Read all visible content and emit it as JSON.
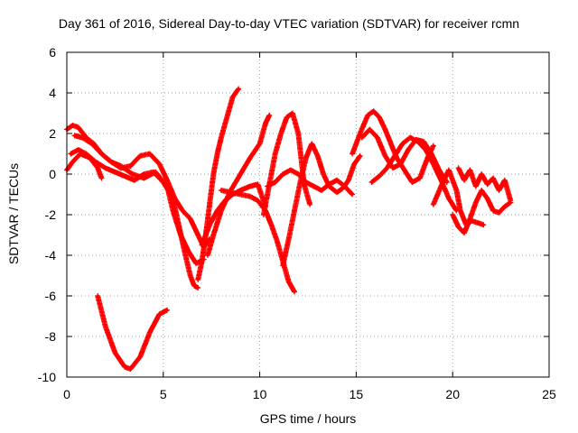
{
  "chart_data": {
    "type": "scatter",
    "title": "Day 361 of 2016, Sidereal Day-to-day VTEC variation (SDTVAR) for receiver rcmn",
    "xlabel": "GPS time / hours",
    "ylabel": "SDTVAR / TECUs",
    "xlim": [
      0,
      25
    ],
    "ylim": [
      -10,
      6
    ],
    "xticks": [
      0,
      5,
      10,
      15,
      20,
      25
    ],
    "yticks": [
      -10,
      -8,
      -6,
      -4,
      -2,
      0,
      2,
      4,
      6
    ],
    "xtick_labels": [
      "0",
      "5",
      "10",
      "15",
      "20",
      "25"
    ],
    "ytick_labels": [
      "-10",
      "-8",
      "-6",
      "-4",
      "-2",
      "0",
      "2",
      "4",
      "6"
    ],
    "grid": true,
    "marker": "+",
    "color": "#ff0000",
    "series": [
      {
        "name": "s1",
        "x": [
          0.0,
          0.3,
          0.7,
          1.2,
          1.6,
          1.8
        ],
        "y": [
          0.2,
          0.6,
          1.0,
          0.8,
          0.3,
          -0.2
        ]
      },
      {
        "name": "s2",
        "x": [
          1.6,
          2.0,
          2.5,
          3.0,
          3.3,
          3.8,
          4.3,
          4.8,
          5.2
        ],
        "y": [
          -6.0,
          -7.5,
          -8.8,
          -9.5,
          -9.6,
          -9.0,
          -7.8,
          -6.9,
          -6.7
        ]
      },
      {
        "name": "s3",
        "x": [
          0.0,
          0.3,
          0.6,
          1.0,
          1.4,
          1.8,
          2.3,
          2.8,
          3.3,
          3.8,
          4.3,
          4.8,
          5.2,
          5.6,
          6.0,
          6.4,
          6.8,
          7.1,
          7.4
        ],
        "y": [
          2.2,
          2.4,
          2.3,
          1.8,
          1.5,
          1.0,
          0.6,
          0.3,
          0.4,
          0.9,
          1.0,
          0.5,
          -0.3,
          -1.2,
          -1.8,
          -2.2,
          -3.0,
          -3.6,
          -3.2
        ]
      },
      {
        "name": "s4",
        "x": [
          0.2,
          0.6,
          1.0,
          1.5,
          2.0,
          2.5,
          3.0,
          3.5,
          4.0,
          4.5,
          5.0,
          5.5,
          5.8,
          6.1,
          6.4,
          6.6,
          6.8
        ],
        "y": [
          1.0,
          1.2,
          1.0,
          0.6,
          0.3,
          0.1,
          -0.1,
          -0.3,
          0.0,
          0.1,
          -0.4,
          -1.2,
          -2.5,
          -3.8,
          -5.0,
          -5.5,
          -5.6
        ]
      },
      {
        "name": "s5",
        "x": [
          0.4,
          0.8,
          1.3,
          1.8,
          2.3,
          2.8,
          3.4,
          4.0,
          4.6,
          5.2,
          5.5,
          5.9,
          6.3,
          6.7,
          7.1
        ],
        "y": [
          1.9,
          1.8,
          1.5,
          1.0,
          0.6,
          0.4,
          0.0,
          -0.2,
          0.1,
          -0.6,
          -1.8,
          -3.0,
          -3.8,
          -4.4,
          -4.2
        ]
      },
      {
        "name": "s6",
        "x": [
          6.8,
          7.0,
          7.2,
          7.4,
          7.6,
          7.8,
          8.0,
          8.3,
          8.6,
          8.9
        ],
        "y": [
          -5.2,
          -4.3,
          -3.0,
          -1.5,
          0.0,
          1.0,
          1.8,
          2.8,
          3.8,
          4.2
        ]
      },
      {
        "name": "s7",
        "x": [
          7.3,
          7.6,
          8.0,
          8.5,
          9.0,
          9.5,
          10.0,
          10.3,
          10.5
        ],
        "y": [
          -4.0,
          -3.0,
          -1.8,
          -0.8,
          0.0,
          0.8,
          1.5,
          2.5,
          2.9
        ]
      },
      {
        "name": "s8",
        "x": [
          7.0,
          7.4,
          7.8,
          8.2,
          8.6,
          9.0,
          9.5,
          9.9,
          10.3
        ],
        "y": [
          -3.5,
          -2.5,
          -1.8,
          -1.3,
          -1.0,
          -0.8,
          -0.6,
          -0.5,
          -1.6
        ]
      },
      {
        "name": "s9",
        "x": [
          8.0,
          8.5,
          9.0,
          9.5,
          9.9,
          10.3,
          10.6,
          10.9,
          11.2,
          11.5,
          11.8
        ],
        "y": [
          -0.8,
          -0.9,
          -1.0,
          -1.1,
          -1.3,
          -1.8,
          -2.5,
          -3.3,
          -4.3,
          -5.3,
          -5.8
        ]
      },
      {
        "name": "s10",
        "x": [
          10.2,
          10.5,
          10.8,
          11.1,
          11.4,
          11.7,
          12.0,
          12.3,
          12.6
        ],
        "y": [
          -2.0,
          -0.5,
          1.0,
          2.0,
          2.8,
          3.0,
          2.0,
          -0.5,
          -1.5
        ]
      },
      {
        "name": "s11",
        "x": [
          11.2,
          11.5,
          11.8,
          12.1,
          12.4,
          12.7,
          13.0,
          13.3,
          13.6,
          14.0,
          14.3,
          14.6,
          14.9,
          15.2
        ],
        "y": [
          -4.5,
          -3.2,
          -1.8,
          -0.4,
          0.8,
          1.5,
          0.9,
          0.0,
          -0.6,
          -0.9,
          -0.7,
          -0.3,
          0.5,
          0.9
        ]
      },
      {
        "name": "s12",
        "x": [
          10.4,
          10.8,
          11.2,
          11.6,
          12.0,
          12.4,
          12.8,
          13.2,
          13.6,
          14.0,
          14.4,
          14.8
        ],
        "y": [
          -0.6,
          -0.4,
          0.0,
          0.2,
          0.0,
          -0.4,
          -0.6,
          -0.8,
          -0.5,
          -0.3,
          -0.6,
          -1.0
        ]
      },
      {
        "name": "s13",
        "x": [
          14.8,
          15.2,
          15.6,
          15.9,
          16.2,
          16.5,
          16.8,
          17.1,
          17.5,
          17.9,
          18.3,
          18.7,
          19.0
        ],
        "y": [
          1.0,
          2.0,
          2.9,
          3.1,
          2.8,
          2.2,
          1.5,
          0.8,
          0.2,
          -0.4,
          -0.2,
          0.8,
          1.4
        ]
      },
      {
        "name": "s14",
        "x": [
          15.3,
          15.7,
          16.1,
          16.5,
          16.9,
          17.3,
          17.7,
          18.1,
          18.5,
          18.9,
          19.3,
          19.7
        ],
        "y": [
          1.8,
          2.2,
          1.8,
          0.9,
          0.3,
          0.5,
          1.2,
          1.7,
          1.6,
          1.0,
          0.2,
          -0.4
        ]
      },
      {
        "name": "s15",
        "x": [
          15.8,
          16.2,
          16.6,
          17.0,
          17.4,
          17.8,
          18.2,
          18.6,
          19.0,
          19.4,
          19.8,
          20.2
        ],
        "y": [
          -0.4,
          -0.1,
          0.3,
          0.9,
          1.5,
          1.8,
          1.6,
          1.2,
          0.5,
          -0.3,
          -1.2,
          -1.8
        ]
      },
      {
        "name": "s16",
        "x": [
          19.0,
          19.4,
          19.8,
          20.2,
          20.4,
          20.7,
          21.0,
          21.3,
          21.6
        ],
        "y": [
          -1.5,
          -0.6,
          0.2,
          -0.8,
          -1.8,
          -2.5,
          -2.3,
          -2.4,
          -2.5
        ]
      },
      {
        "name": "s17",
        "x": [
          20.0,
          20.3,
          20.6,
          20.9,
          21.2,
          21.5,
          21.8,
          22.1,
          22.4,
          22.7,
          23.0
        ],
        "y": [
          -2.0,
          -2.6,
          -2.9,
          -2.2,
          -1.4,
          -0.8,
          -1.2,
          -1.8,
          -1.9,
          -1.6,
          -1.4
        ]
      },
      {
        "name": "s18",
        "x": [
          20.3,
          20.6,
          20.9,
          21.2,
          21.5,
          21.8,
          22.1,
          22.4,
          22.7,
          23.0
        ],
        "y": [
          0.3,
          -0.3,
          0.2,
          -0.6,
          0.0,
          -0.5,
          -0.2,
          -0.8,
          -0.3,
          -1.3
        ]
      }
    ]
  }
}
